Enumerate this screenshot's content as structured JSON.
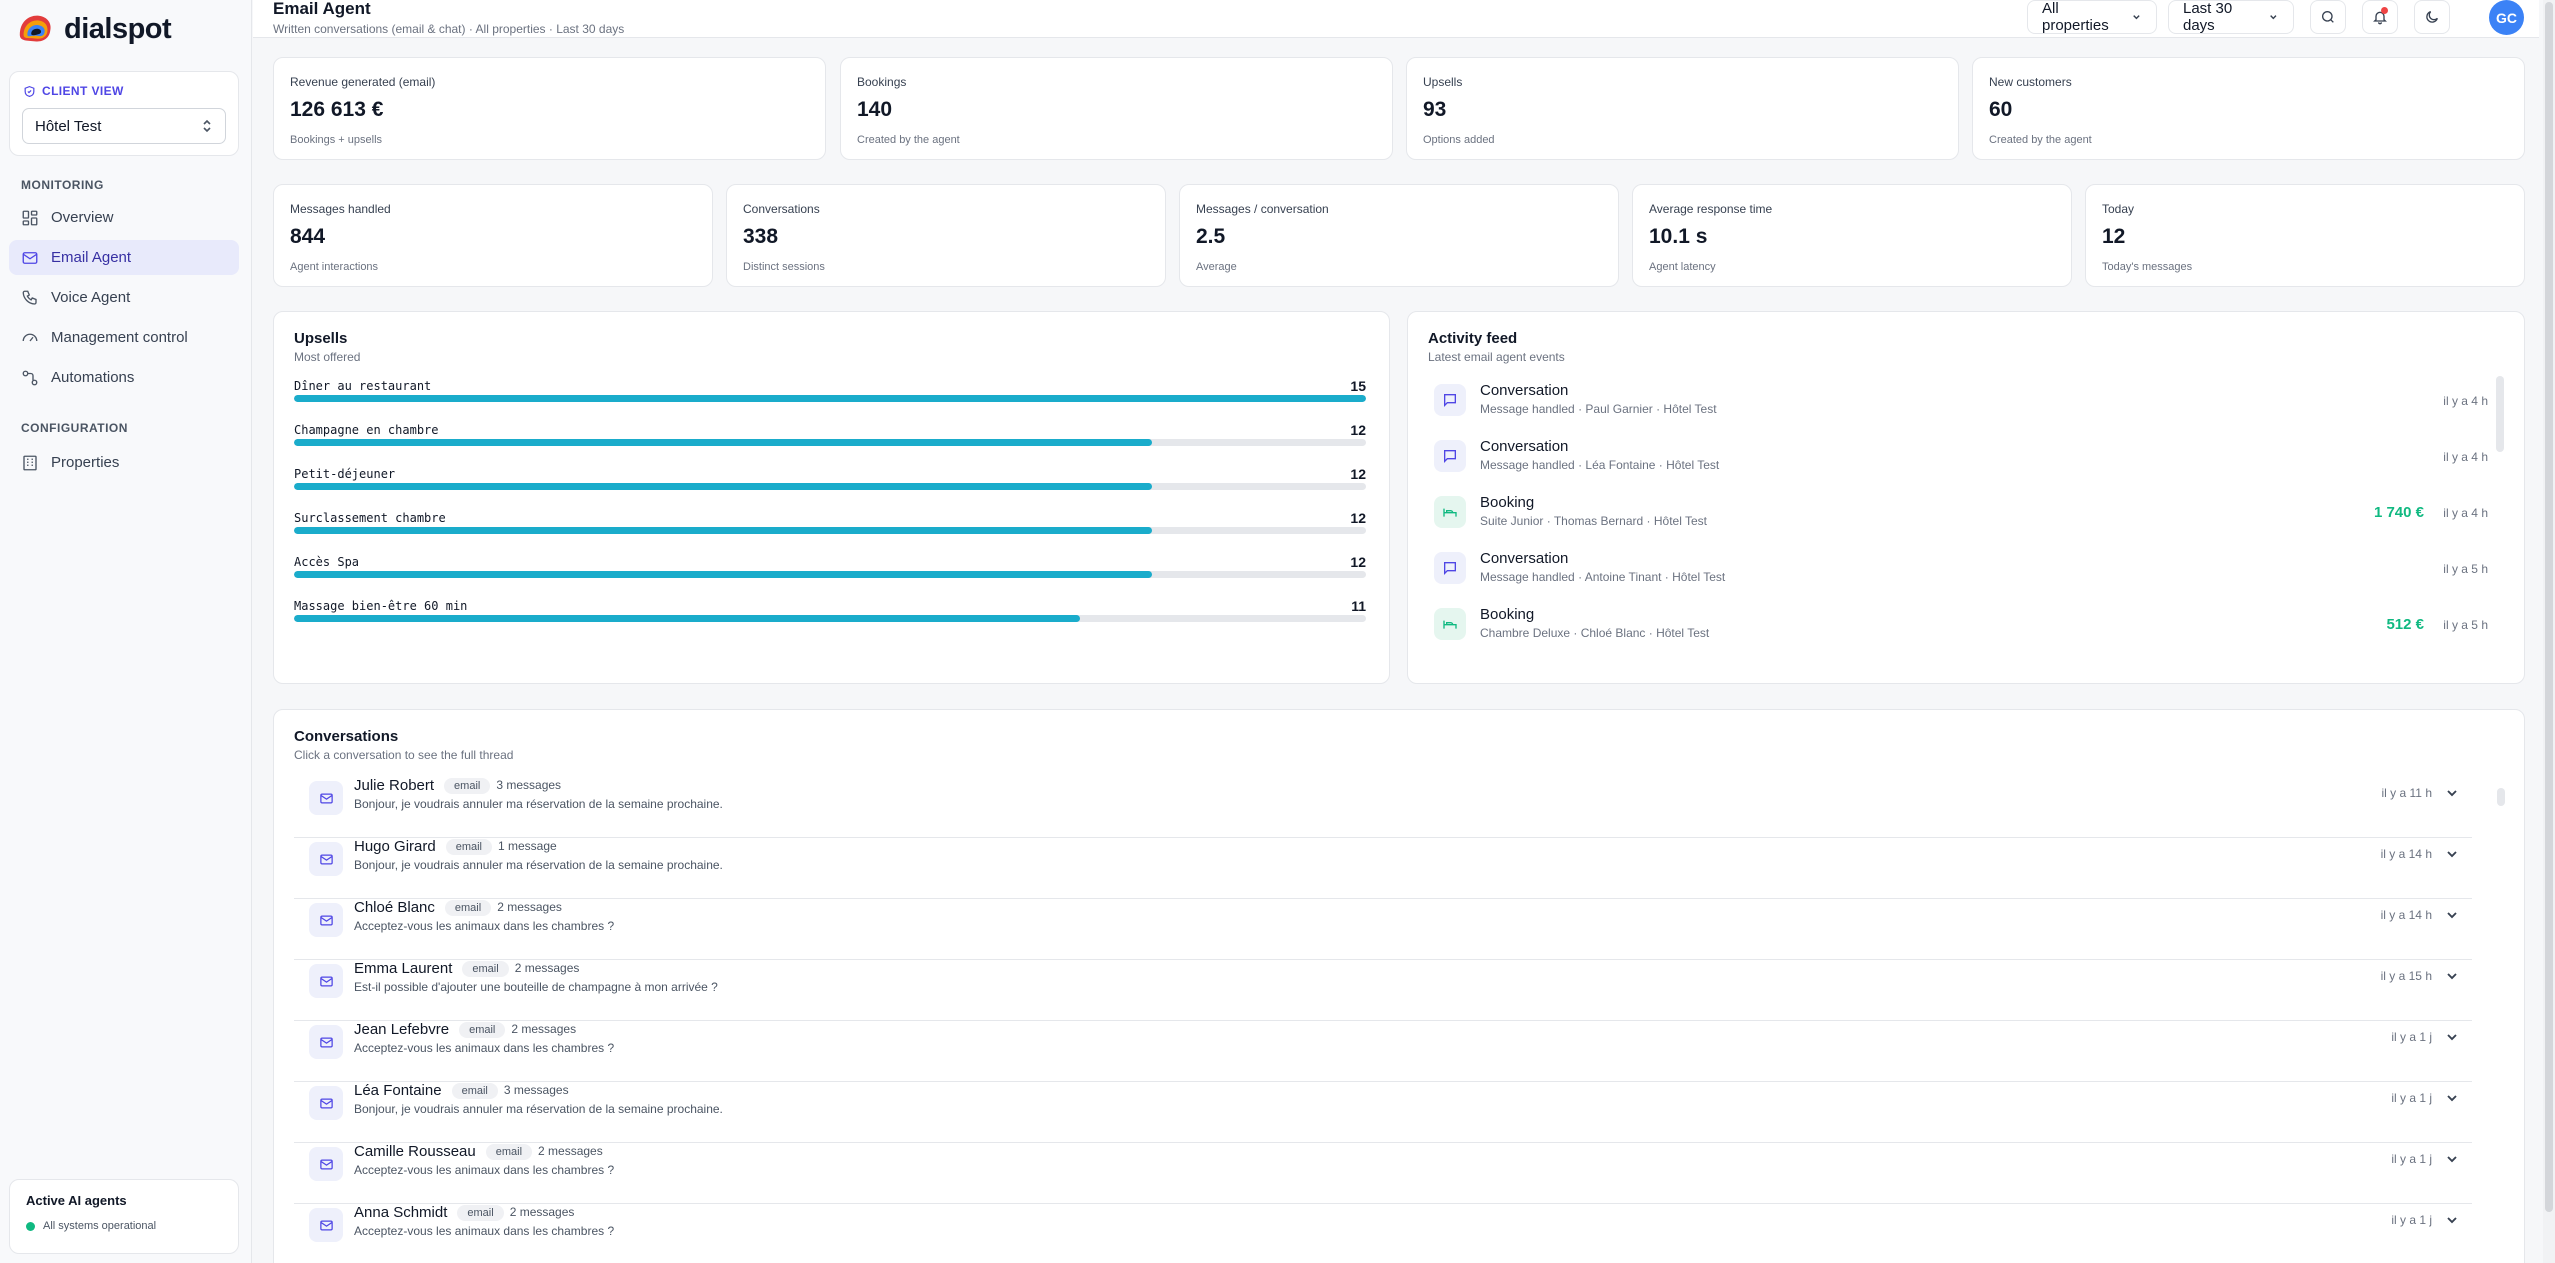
{
  "brand": {
    "name": "dialspot"
  },
  "sidebar": {
    "client_view_label": "CLIENT VIEW",
    "client_selected": "Hôtel Test",
    "monitoring_label": "MONITORING",
    "monitoring_items": [
      {
        "label": "Overview",
        "icon": "grid-icon"
      },
      {
        "label": "Email Agent",
        "icon": "mail-icon",
        "active": true
      },
      {
        "label": "Voice Agent",
        "icon": "phone-icon"
      },
      {
        "label": "Management control",
        "icon": "gauge-icon"
      },
      {
        "label": "Automations",
        "icon": "workflow-icon"
      }
    ],
    "configuration_label": "CONFIGURATION",
    "configuration_items": [
      {
        "label": "Properties",
        "icon": "building-icon"
      }
    ],
    "agents_title": "Active AI agents",
    "agents_status": "All systems operational"
  },
  "header": {
    "title": "Email Agent",
    "subtitle": "Written conversations (email & chat) · All properties · Last 30 days",
    "property_filter": "All properties",
    "period_filter": "Last 30 days",
    "avatar_initials": "GC"
  },
  "kpis_top": [
    {
      "label": "Revenue generated (email)",
      "value": "126 613 €",
      "hint": "Bookings + upsells"
    },
    {
      "label": "Bookings",
      "value": "140",
      "hint": "Created by the agent"
    },
    {
      "label": "Upsells",
      "value": "93",
      "hint": "Options added"
    },
    {
      "label": "New customers",
      "value": "60",
      "hint": "Created by the agent"
    }
  ],
  "kpis_bottom": [
    {
      "label": "Messages handled",
      "value": "844",
      "hint": "Agent interactions"
    },
    {
      "label": "Conversations",
      "value": "338",
      "hint": "Distinct sessions"
    },
    {
      "label": "Messages / conversation",
      "value": "2.5",
      "hint": "Average"
    },
    {
      "label": "Average response time",
      "value": "10.1 s",
      "hint": "Agent latency"
    },
    {
      "label": "Today",
      "value": "12",
      "hint": "Today's messages"
    }
  ],
  "upsells": {
    "title": "Upsells",
    "subtitle": "Most offered",
    "max": 15,
    "items": [
      {
        "name": "Dîner au restaurant",
        "count": 15
      },
      {
        "name": "Champagne en chambre",
        "count": 12
      },
      {
        "name": "Petit-déjeuner",
        "count": 12
      },
      {
        "name": "Surclassement chambre",
        "count": 12
      },
      {
        "name": "Accès Spa",
        "count": 12
      },
      {
        "name": "Massage bien-être 60 min",
        "count": 11
      }
    ]
  },
  "activity": {
    "title": "Activity feed",
    "subtitle": "Latest email agent events",
    "items": [
      {
        "type": "conversation",
        "title": "Conversation",
        "meta": "Message handled · Paul Garnier · Hôtel Test",
        "amount": "",
        "time": "il y a 4 h"
      },
      {
        "type": "conversation",
        "title": "Conversation",
        "meta": "Message handled · Léa Fontaine · Hôtel Test",
        "amount": "",
        "time": "il y a 4 h"
      },
      {
        "type": "booking",
        "title": "Booking",
        "meta": "Suite Junior · Thomas Bernard · Hôtel Test",
        "amount": "1 740 €",
        "time": "il y a 4 h"
      },
      {
        "type": "conversation",
        "title": "Conversation",
        "meta": "Message handled · Antoine Tinant · Hôtel Test",
        "amount": "",
        "time": "il y a 5 h"
      },
      {
        "type": "booking",
        "title": "Booking",
        "meta": "Chambre Deluxe · Chloé Blanc · Hôtel Test",
        "amount": "512 €",
        "time": "il y a 5 h"
      }
    ]
  },
  "conversations": {
    "title": "Conversations",
    "subtitle": "Click a conversation to see the full thread",
    "items": [
      {
        "name": "Julie Robert",
        "channel": "email",
        "count": "3 messages",
        "preview": "Bonjour, je voudrais annuler ma réservation de la semaine prochaine.",
        "time": "il y a 11 h"
      },
      {
        "name": "Hugo Girard",
        "channel": "email",
        "count": "1 message",
        "preview": "Bonjour, je voudrais annuler ma réservation de la semaine prochaine.",
        "time": "il y a 14 h"
      },
      {
        "name": "Chloé Blanc",
        "channel": "email",
        "count": "2 messages",
        "preview": "Acceptez-vous les animaux dans les chambres ?",
        "time": "il y a 14 h"
      },
      {
        "name": "Emma Laurent",
        "channel": "email",
        "count": "2 messages",
        "preview": "Est-il possible d'ajouter une bouteille de champagne à mon arrivée ?",
        "time": "il y a 15 h"
      },
      {
        "name": "Jean Lefebvre",
        "channel": "email",
        "count": "2 messages",
        "preview": "Acceptez-vous les animaux dans les chambres ?",
        "time": "il y a 1 j"
      },
      {
        "name": "Léa Fontaine",
        "channel": "email",
        "count": "3 messages",
        "preview": "Bonjour, je voudrais annuler ma réservation de la semaine prochaine.",
        "time": "il y a 1 j"
      },
      {
        "name": "Camille Rousseau",
        "channel": "email",
        "count": "2 messages",
        "preview": "Acceptez-vous les animaux dans les chambres ?",
        "time": "il y a 1 j"
      },
      {
        "name": "Anna Schmidt",
        "channel": "email",
        "count": "2 messages",
        "preview": "Acceptez-vous les animaux dans les chambres ?",
        "time": "il y a 1 j"
      }
    ]
  },
  "colors": {
    "accent": "#4f46e5",
    "bar": "#1aaccb",
    "positive": "#10b981",
    "avatar": "#3b82f6"
  }
}
